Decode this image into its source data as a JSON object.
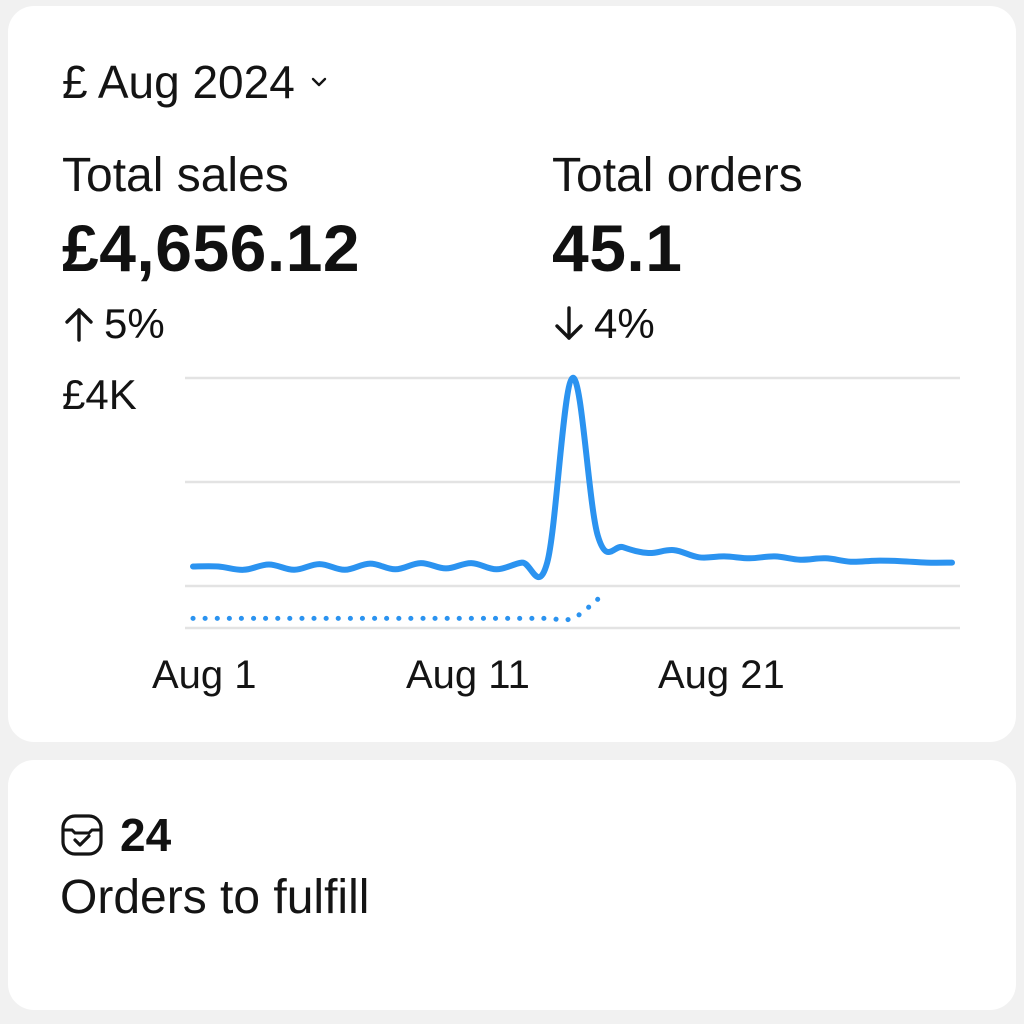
{
  "period": {
    "label": "£ Aug 2024",
    "icon": "chevron-down-icon"
  },
  "metrics": {
    "sales": {
      "label": "Total sales",
      "value": "£4,656.12",
      "change": "5%",
      "direction": "up"
    },
    "orders": {
      "label": "Total orders",
      "value": "45.1",
      "change": "4%",
      "direction": "down"
    }
  },
  "colors": {
    "accent": "#2b93f0",
    "grid": "#e3e3e3",
    "text": "#141414"
  },
  "chart_data": {
    "type": "line",
    "x_ticks": [
      "Aug 1",
      "Aug 11",
      "Aug 21"
    ],
    "y_ticks": [
      "£4K"
    ],
    "series": [
      {
        "style": "solid",
        "x": [
          1,
          2,
          3,
          4,
          5,
          6,
          7,
          8,
          9,
          10,
          11,
          12,
          13,
          14,
          15,
          16,
          17,
          18,
          19,
          20,
          21,
          22,
          23,
          24,
          25,
          26,
          27,
          28,
          29,
          30,
          31
        ],
        "values": [
          80,
          80,
          10,
          120,
          10,
          130,
          10,
          140,
          20,
          150,
          40,
          150,
          20,
          160,
          160,
          4000,
          720,
          480,
          360,
          420,
          270,
          290,
          250,
          290,
          220,
          250,
          180,
          200,
          190,
          160,
          160
        ]
      },
      {
        "style": "dotted",
        "x": [
          1,
          2,
          3,
          4,
          5,
          6,
          7,
          8,
          9,
          10,
          11,
          12,
          13,
          14,
          15,
          16,
          17
        ],
        "values": [
          -1000,
          -1000,
          -1000,
          -1000,
          -1000,
          -1000,
          -1000,
          -1000,
          -1000,
          -1000,
          -1000,
          -1000,
          -1000,
          -1000,
          -1000,
          -1000,
          -600
        ]
      }
    ]
  },
  "fulfillment": {
    "count": "24",
    "label": "Orders to fulfill",
    "icon": "inbox-check-icon"
  }
}
